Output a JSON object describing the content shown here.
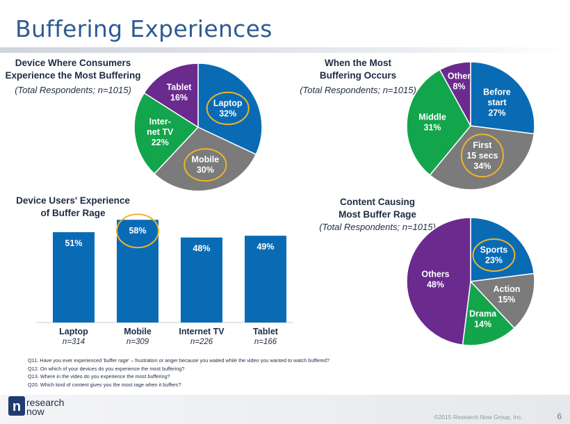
{
  "page": {
    "title": "Buffering Experiences",
    "page_number": "6",
    "copyright": "©2015 Research Now Group, Inc.",
    "logo_text_line1": "research",
    "logo_text_line2": "now",
    "logo_mark": "n"
  },
  "notes": [
    "Q11. Have you ever experienced 'buffer rage' – frustration or anger because you waited while the video you wanted to watch buffered?",
    "Q12. On which of your devices do you experience the most buffering?",
    "Q13. Where in the video do you experience the most buffering?",
    "Q20. Which kind of content gives you the most rage when it buffers?"
  ],
  "highlight_color": "#f0b429",
  "chart_data": [
    {
      "id": "device-pie",
      "type": "pie",
      "title_line1": "Device Where Consumers",
      "title_line2": "Experience the Most Buffering",
      "subtitle": "(Total Respondents; n=1015)",
      "slices": [
        {
          "label_lines": [
            "Laptop",
            "32%"
          ],
          "value": 32,
          "color": "#0a6bb5",
          "highlight": true
        },
        {
          "label_lines": [
            "Mobile",
            "30%"
          ],
          "value": 30,
          "color": "#7b7b7b",
          "highlight": true
        },
        {
          "label_lines": [
            "Inter-",
            "net TV",
            "22%"
          ],
          "value": 22,
          "color": "#13a54b",
          "highlight": false
        },
        {
          "label_lines": [
            "Tablet",
            "16%"
          ],
          "value": 16,
          "color": "#6a2a8e",
          "highlight": false
        }
      ]
    },
    {
      "id": "timing-pie",
      "type": "pie",
      "title_line1": "When the Most",
      "title_line2": "Buffering Occurs",
      "subtitle": "(Total Respondents; n=1015)",
      "slices": [
        {
          "label_lines": [
            "Before",
            "start",
            "27%"
          ],
          "value": 27,
          "color": "#0a6bb5",
          "highlight": false
        },
        {
          "label_lines": [
            "First",
            "15 secs",
            "34%"
          ],
          "value": 34,
          "color": "#7b7b7b",
          "highlight": true
        },
        {
          "label_lines": [
            "Middle",
            "31%"
          ],
          "value": 31,
          "color": "#13a54b",
          "highlight": false
        },
        {
          "label_lines": [
            "Other",
            "8%"
          ],
          "value": 8,
          "color": "#6a2a8e",
          "highlight": false
        }
      ]
    },
    {
      "id": "content-pie",
      "type": "pie",
      "title_line1": "Content Causing",
      "title_line2": "Most Buffer Rage",
      "subtitle": "(Total Respondents; n=1015)",
      "slices": [
        {
          "label_lines": [
            "Sports",
            "23%"
          ],
          "value": 23,
          "color": "#0a6bb5",
          "highlight": true
        },
        {
          "label_lines": [
            "Action",
            "15%"
          ],
          "value": 15,
          "color": "#7b7b7b",
          "highlight": false
        },
        {
          "label_lines": [
            "Drama",
            "14%"
          ],
          "value": 14,
          "color": "#13a54b",
          "highlight": false
        },
        {
          "label_lines": [
            "Others",
            "48%"
          ],
          "value": 48,
          "color": "#6a2a8e",
          "highlight": false
        }
      ]
    },
    {
      "id": "rage-bar",
      "type": "bar",
      "title_line1": "Device Users' Experience",
      "title_line2": "of Buffer Rage",
      "categories": [
        "Laptop",
        "Mobile",
        "Internet TV",
        "Tablet"
      ],
      "sample_sizes": [
        "n=314",
        "n=309",
        "n=226",
        "n=166"
      ],
      "values": [
        51,
        58,
        48,
        49
      ],
      "value_labels": [
        "51%",
        "58%",
        "48%",
        "49%"
      ],
      "highlight_index": 1,
      "color": "#0a6bb5",
      "ylim": [
        0,
        62
      ]
    }
  ]
}
